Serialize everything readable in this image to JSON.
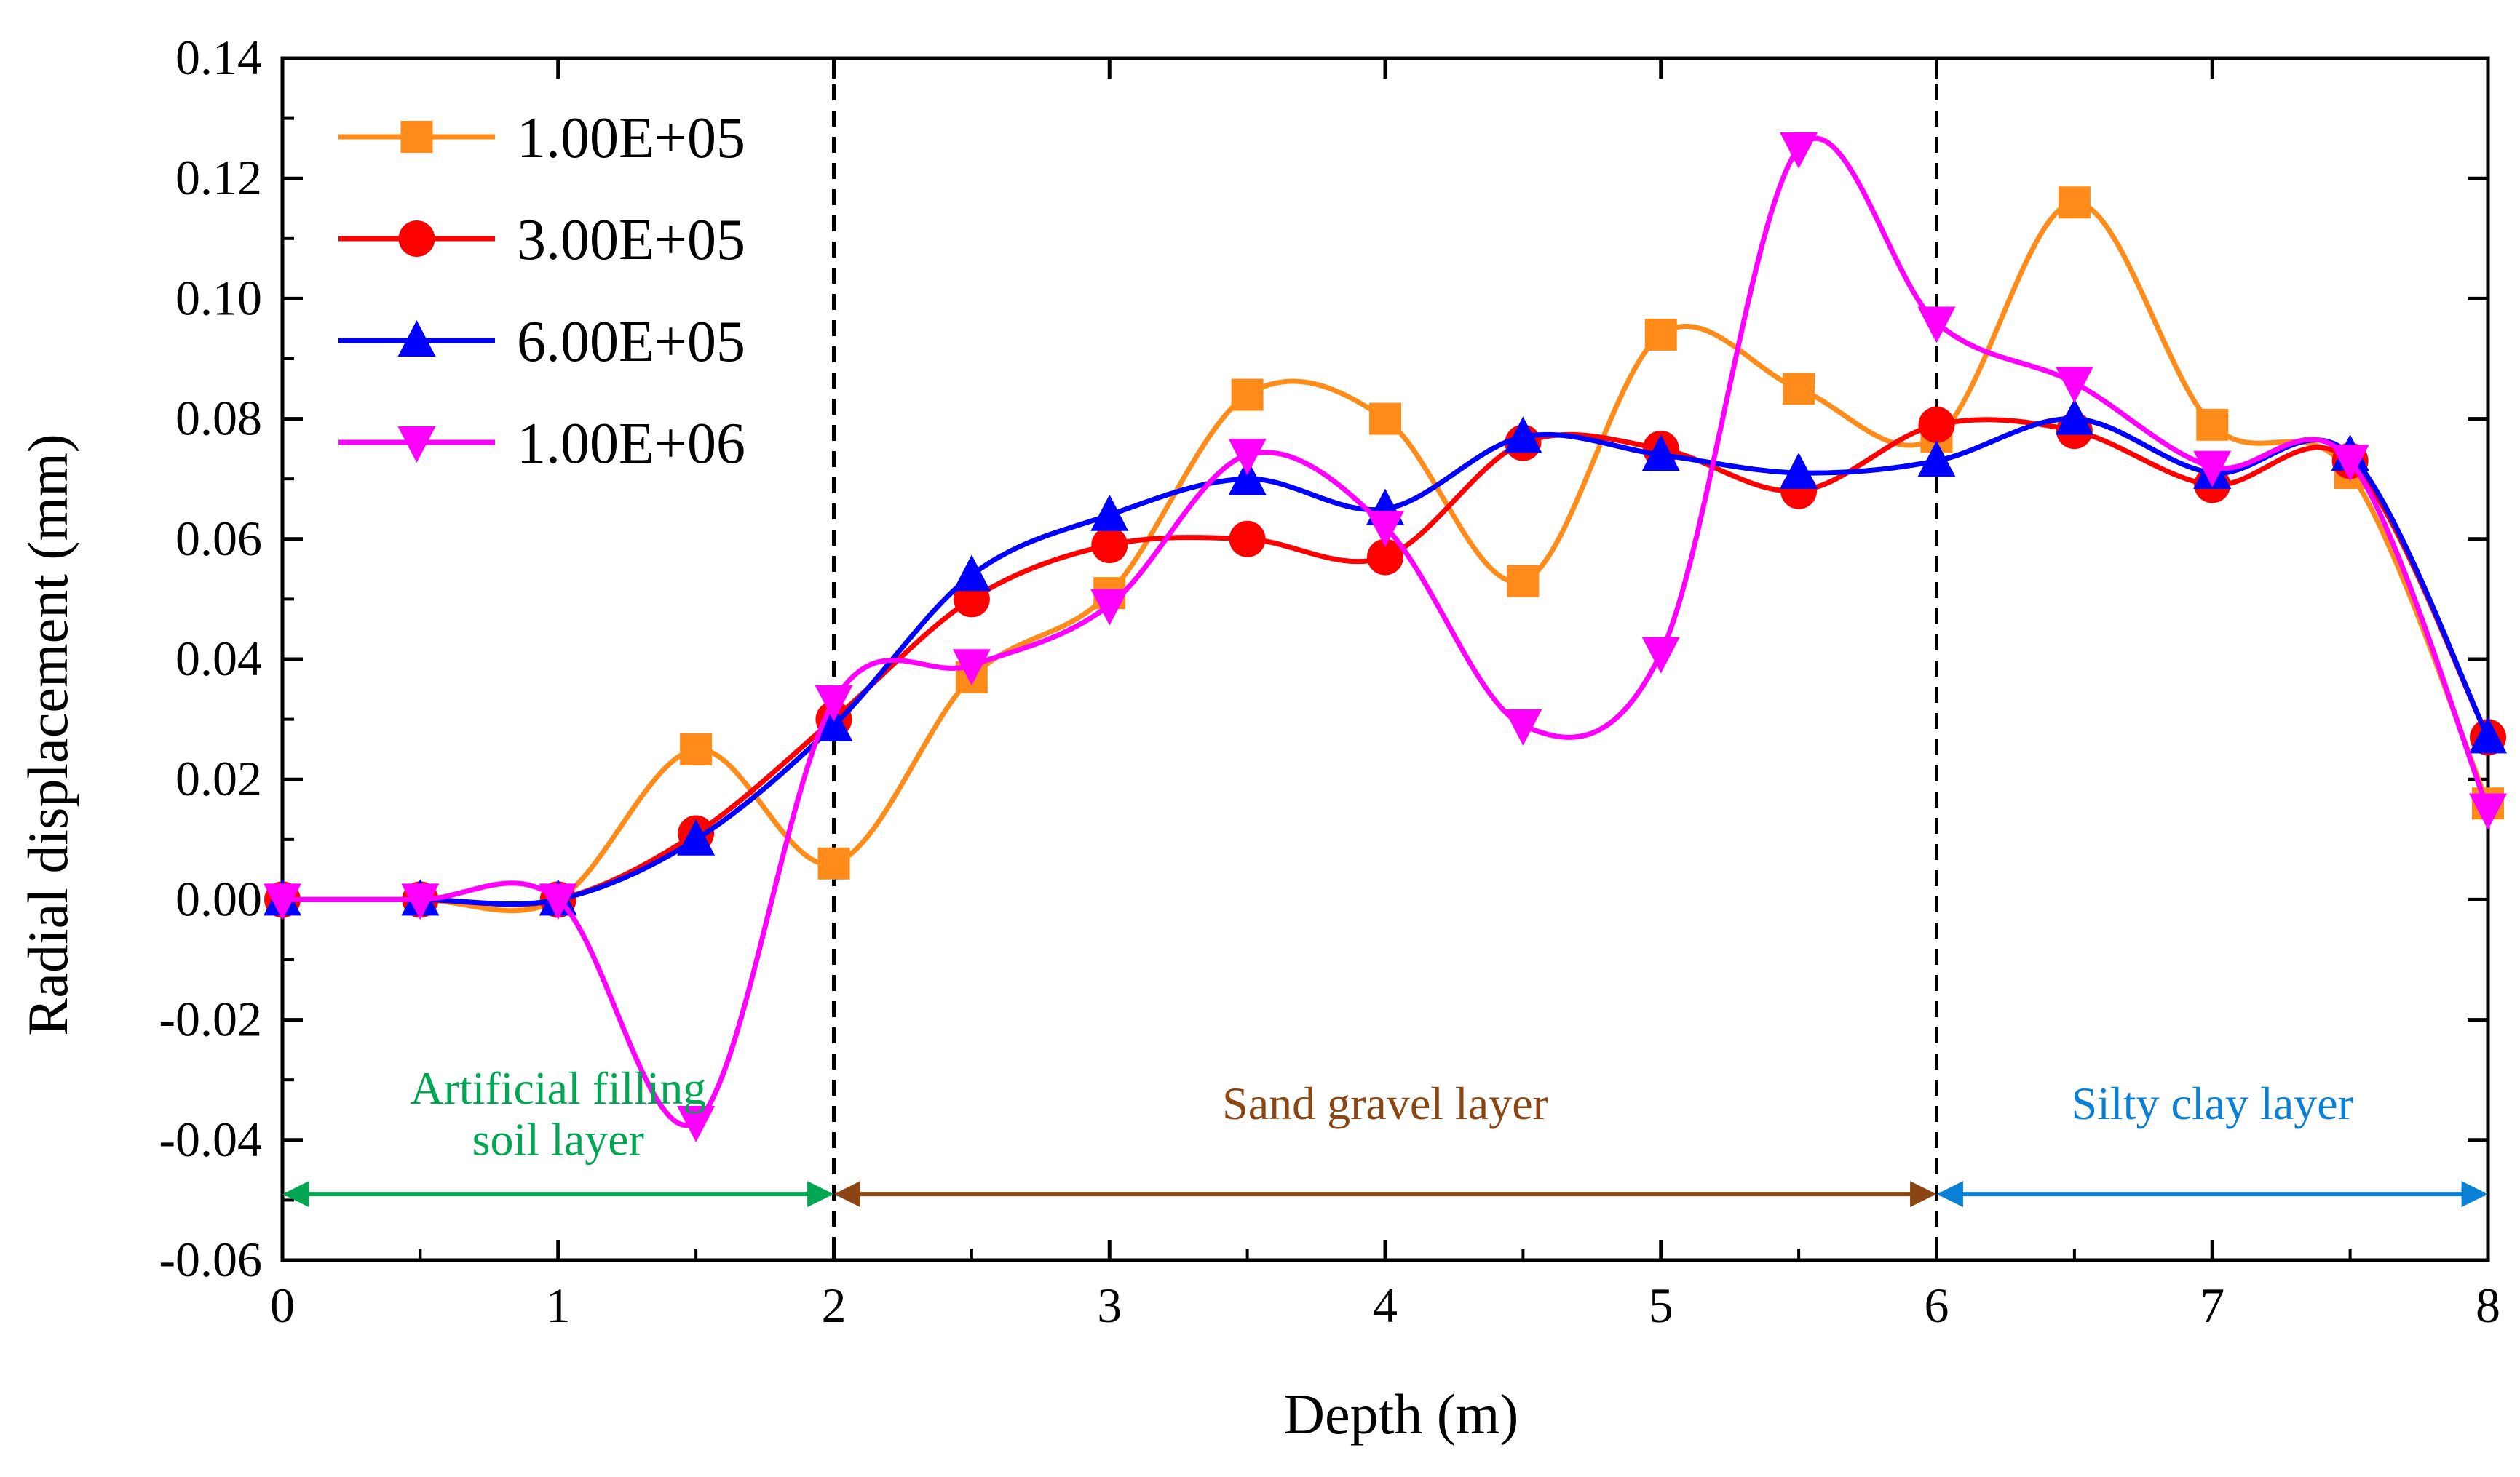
{
  "chart_data": {
    "type": "line",
    "title": "",
    "xlabel": "Depth (m)",
    "ylabel": "Radial displacement (mm)",
    "xlim": [
      0,
      8
    ],
    "ylim": [
      -0.06,
      0.14
    ],
    "xticks": [
      "0",
      "1",
      "2",
      "3",
      "4",
      "5",
      "6",
      "7",
      "8"
    ],
    "yticks": [
      "-0.06",
      "-0.04",
      "-0.02",
      "0.00",
      "0.02",
      "0.04",
      "0.06",
      "0.08",
      "0.10",
      "0.12",
      "0.14"
    ],
    "grid": false,
    "legend_position": "top-left",
    "x": [
      0,
      0.5,
      1,
      1.5,
      2,
      2.5,
      3,
      3.5,
      4,
      4.5,
      5,
      5.5,
      6,
      6.5,
      7,
      7.5,
      8
    ],
    "series": [
      {
        "name": "1.00E+05",
        "color": "#FF8C1A",
        "marker": "square",
        "values": [
          0.0,
          0.0,
          0.0,
          0.025,
          0.006,
          0.037,
          0.051,
          0.084,
          0.08,
          0.053,
          0.094,
          0.085,
          0.077,
          0.116,
          0.079,
          0.071,
          0.016
        ]
      },
      {
        "name": "3.00E+05",
        "color": "#FF0000",
        "marker": "circle",
        "values": [
          0.0,
          0.0,
          0.0,
          0.011,
          0.03,
          0.05,
          0.059,
          0.06,
          0.057,
          0.076,
          0.075,
          0.068,
          0.079,
          0.078,
          0.069,
          0.073,
          0.027
        ]
      },
      {
        "name": "6.00E+05",
        "color": "#0000FF",
        "marker": "triangle-up",
        "values": [
          0.0,
          0.0,
          0.0,
          0.01,
          0.029,
          0.054,
          0.064,
          0.07,
          0.065,
          0.077,
          0.074,
          0.071,
          0.073,
          0.08,
          0.071,
          0.074,
          0.027
        ]
      },
      {
        "name": "1.00E+06",
        "color": "#FF00FF",
        "marker": "triangle-down",
        "values": [
          0.0,
          0.0,
          0.0,
          -0.037,
          0.033,
          0.039,
          0.049,
          0.074,
          0.062,
          0.029,
          0.041,
          0.125,
          0.096,
          0.086,
          0.072,
          0.073,
          0.015
        ]
      }
    ],
    "layers": [
      {
        "line1": "Artificial filling",
        "line2": "soil layer",
        "from": 0,
        "to": 2,
        "color": "#00A651"
      },
      {
        "line1": "Sand gravel layer",
        "line2": "",
        "from": 2,
        "to": 6,
        "color": "#8B4513"
      },
      {
        "line1": "Silty clay layer",
        "line2": "",
        "from": 6,
        "to": 8,
        "color": "#0A7FD6"
      }
    ],
    "boundaries": [
      2,
      6
    ]
  }
}
